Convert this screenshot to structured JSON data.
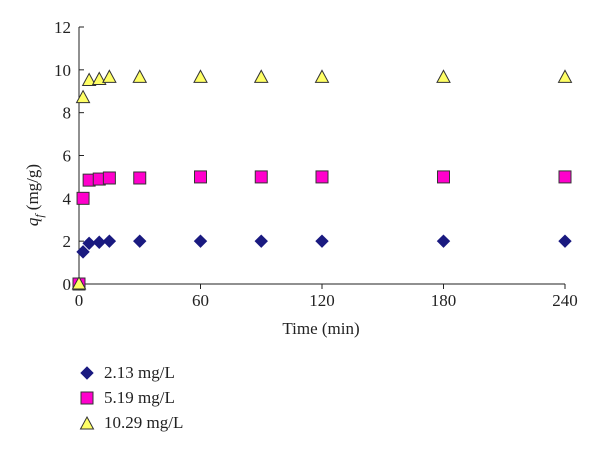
{
  "chart_data": {
    "type": "scatter",
    "xlabel": "Time (min)",
    "ylabel_main": "q",
    "ylabel_sub": "f",
    "ylabel_unit": "(mg/g)",
    "xlim": [
      0,
      240
    ],
    "ylim": [
      0,
      12
    ],
    "xticks": [
      0,
      60,
      120,
      180,
      240
    ],
    "yticks": [
      0,
      2,
      4,
      6,
      8,
      10,
      12
    ],
    "grid": false,
    "legend_position": "bottom-left",
    "series": [
      {
        "name": "2.13 mg/L",
        "marker": "diamond",
        "color": "#1a1a80",
        "stroke": "#1a1a80",
        "x": [
          0,
          2,
          5,
          10,
          15,
          30,
          60,
          90,
          120,
          180,
          240
        ],
        "y": [
          0,
          1.5,
          1.9,
          1.95,
          2.0,
          2.0,
          2.0,
          2.0,
          2.0,
          2.0,
          2.0
        ]
      },
      {
        "name": "5.19 mg/L",
        "marker": "square",
        "color": "#ff00cc",
        "stroke": "#333333",
        "x": [
          0,
          2,
          5,
          10,
          15,
          30,
          60,
          90,
          120,
          180,
          240
        ],
        "y": [
          0,
          4.0,
          4.85,
          4.9,
          4.95,
          4.95,
          5.0,
          5.0,
          5.0,
          5.0,
          5.0
        ]
      },
      {
        "name": "10.29 mg/L",
        "marker": "triangle",
        "color": "#ffff66",
        "stroke": "#333333",
        "x": [
          0,
          2,
          5,
          10,
          15,
          30,
          60,
          90,
          120,
          180,
          240
        ],
        "y": [
          0,
          8.7,
          9.5,
          9.55,
          9.65,
          9.65,
          9.65,
          9.65,
          9.65,
          9.65,
          9.65
        ]
      }
    ]
  }
}
